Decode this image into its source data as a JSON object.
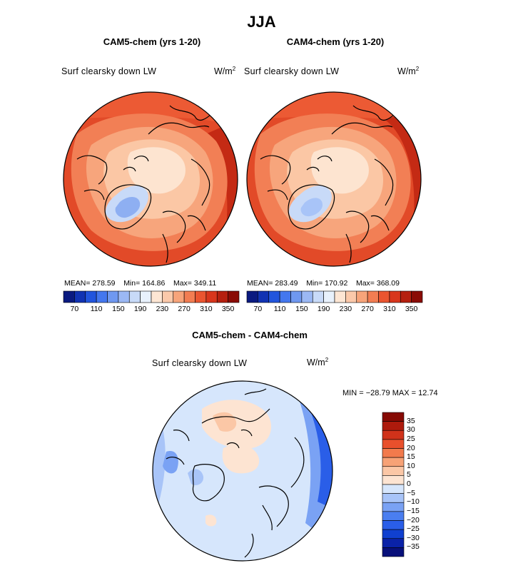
{
  "title": "JJA",
  "panels": [
    {
      "title": "CAM5-chem (yrs 1-20)",
      "variable": "Surf clearsky down LW",
      "unit_base": "W/m",
      "unit_exp": "2",
      "mean_label": "MEAN=",
      "mean": "278.59",
      "min_label": "Min=",
      "min": "164.86",
      "max_label": "Max=",
      "max": "349.11"
    },
    {
      "title": "CAM4-chem (yrs 1-20)",
      "variable": "Surf clearsky down LW",
      "unit_base": "W/m",
      "unit_exp": "2",
      "mean_label": "MEAN=",
      "mean": "283.49",
      "min_label": "Min=",
      "min": "170.92",
      "max_label": "Max=",
      "max": "368.09"
    }
  ],
  "diff_panel": {
    "title": "CAM5-chem - CAM4-chem",
    "variable": "Surf clearsky down LW",
    "unit_base": "W/m",
    "unit_exp": "2",
    "minmax": "MIN = −28.79 MAX =  12.74"
  },
  "chart_data": [
    {
      "type": "heatmap",
      "title": "CAM5-chem (yrs 1-20)",
      "projection": "north polar stereographic",
      "variable": "Surf clearsky down LW",
      "units": "W/m2",
      "mean": 278.59,
      "min": 164.86,
      "max": 349.11,
      "levels": [
        70,
        90,
        110,
        130,
        150,
        170,
        190,
        210,
        230,
        250,
        270,
        290,
        310,
        330,
        350
      ],
      "tick_labels": [
        "70",
        "110",
        "150",
        "190",
        "230",
        "270",
        "310",
        "350"
      ],
      "colors": [
        "#0a1a80",
        "#1133b3",
        "#2255dd",
        "#4477ee",
        "#6f98f0",
        "#9bb8f4",
        "#c8daf8",
        "#e8f1fc",
        "#fde6d4",
        "#fbc9aa",
        "#f7a47a",
        "#f27d52",
        "#ea5530",
        "#d8361c",
        "#b5200f",
        "#8a0c05"
      ]
    },
    {
      "type": "heatmap",
      "title": "CAM4-chem (yrs 1-20)",
      "projection": "north polar stereographic",
      "variable": "Surf clearsky down LW",
      "units": "W/m2",
      "mean": 283.49,
      "min": 170.92,
      "max": 368.09,
      "levels": [
        70,
        90,
        110,
        130,
        150,
        170,
        190,
        210,
        230,
        250,
        270,
        290,
        310,
        330,
        350
      ],
      "tick_labels": [
        "70",
        "110",
        "150",
        "190",
        "230",
        "270",
        "310",
        "350"
      ],
      "colors": [
        "#0a1a80",
        "#1133b3",
        "#2255dd",
        "#4477ee",
        "#6f98f0",
        "#9bb8f4",
        "#c8daf8",
        "#e8f1fc",
        "#fde6d4",
        "#fbc9aa",
        "#f7a47a",
        "#f27d52",
        "#ea5530",
        "#d8361c",
        "#b5200f",
        "#8a0c05"
      ]
    },
    {
      "type": "heatmap",
      "title": "CAM5-chem - CAM4-chem",
      "projection": "north polar stereographic",
      "variable": "Surf clearsky down LW",
      "units": "W/m2",
      "min": -28.79,
      "max": 12.74,
      "levels": [
        -35,
        -30,
        -25,
        -20,
        -15,
        -10,
        -5,
        0,
        5,
        10,
        15,
        20,
        25,
        30,
        35
      ],
      "tick_labels": [
        "35",
        "30",
        "25",
        "20",
        "15",
        "10",
        "5",
        "0",
        "−5",
        "−10",
        "−15",
        "−20",
        "−25",
        "−30",
        "−35"
      ],
      "colors": [
        "#08107a",
        "#0a22a8",
        "#1040d0",
        "#2a5ee8",
        "#4a7ef0",
        "#7aa2f4",
        "#a8c4f8",
        "#d6e6fc",
        "#fde4d2",
        "#fbc7a6",
        "#f7a276",
        "#f27a4c",
        "#e8502c",
        "#d0321a",
        "#ad1a0c",
        "#860a04"
      ]
    }
  ]
}
